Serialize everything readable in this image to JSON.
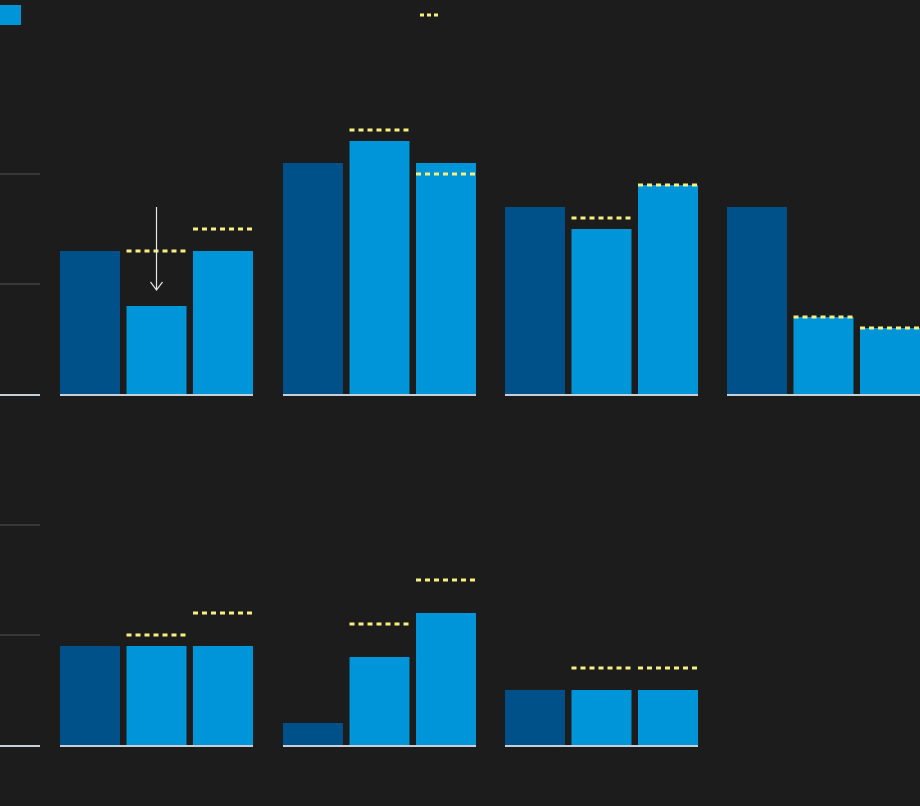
{
  "colors": {
    "background": "#1c1c1c",
    "bar_dark": "#005189",
    "bar_light": "#0095d9",
    "target_line": "#f7ef7e",
    "gridline": "#555555",
    "baseline": "#c5cfd6",
    "annotation_arrow": "#e6e6e6"
  },
  "legend": {
    "swatch_color": "#0095d9",
    "target_marker_color": "#f7ef7e"
  },
  "chart_data": [
    {
      "type": "bar",
      "title": "",
      "xlabel": "",
      "ylabel": "",
      "ylim": [
        0,
        2
      ],
      "gridlines": [
        1,
        2
      ],
      "grid": true,
      "groups": [
        {
          "values": [
            1.3,
            0.8,
            1.3
          ],
          "targets": [
            null,
            1.3,
            1.5
          ]
        },
        {
          "values": [
            2.1,
            2.3,
            2.1
          ],
          "targets": [
            null,
            2.4,
            2.0
          ]
        },
        {
          "values": [
            1.7,
            1.5,
            1.9
          ],
          "targets": [
            null,
            1.6,
            1.9
          ]
        },
        {
          "values": [
            1.7,
            0.7,
            0.6
          ],
          "targets": [
            null,
            0.7,
            0.6
          ]
        }
      ],
      "annotation": {
        "type": "down-arrow",
        "group": 0,
        "bar": 1,
        "from": 1.7,
        "to": 1.0
      }
    },
    {
      "type": "bar",
      "title": "",
      "xlabel": "",
      "ylabel": "",
      "ylim": [
        0,
        2
      ],
      "gridlines": [
        1,
        2
      ],
      "grid": true,
      "groups": [
        {
          "values": [
            0.9,
            0.9,
            0.9
          ],
          "targets": [
            null,
            1.0,
            1.2
          ]
        },
        {
          "values": [
            0.2,
            0.8,
            1.2
          ],
          "targets": [
            null,
            1.1,
            1.5
          ]
        },
        {
          "values": [
            0.5,
            0.5,
            0.5
          ],
          "targets": [
            null,
            0.7,
            0.7
          ]
        }
      ]
    }
  ]
}
